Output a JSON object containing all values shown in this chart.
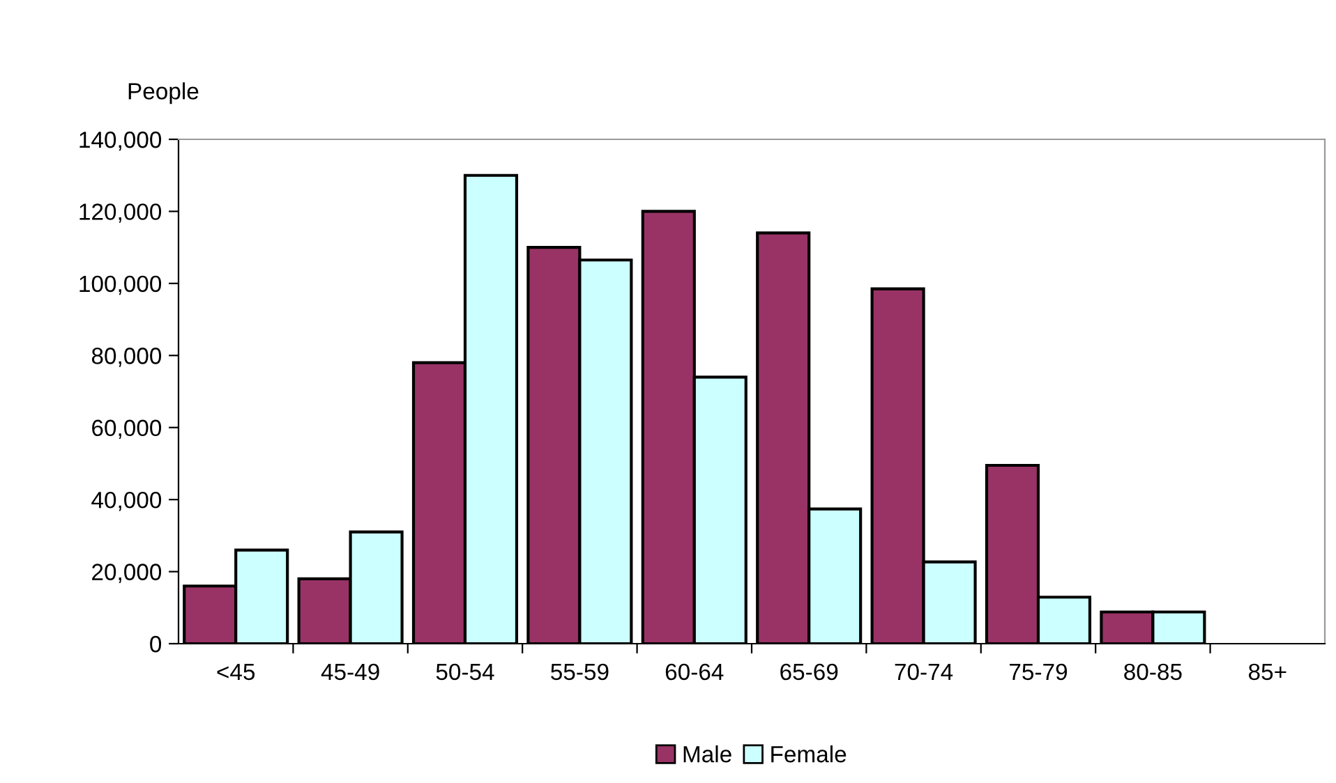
{
  "chart_data": {
    "type": "bar",
    "ylabel": "People",
    "categories": [
      "<45",
      "45-49",
      "50-54",
      "55-59",
      "60-64",
      "65-69",
      "70-74",
      "75-79",
      "80-85",
      "85+"
    ],
    "series": [
      {
        "name": "Male",
        "color": "#993366",
        "values": [
          16000,
          18000,
          78000,
          110000,
          120000,
          114000,
          98500,
          49500,
          8800,
          null
        ]
      },
      {
        "name": "Female",
        "color": "#ccffff",
        "values": [
          26000,
          31000,
          130000,
          106500,
          74000,
          37400,
          22700,
          12900,
          8800,
          null
        ]
      }
    ],
    "ylim": [
      0,
      140000
    ],
    "yticks": [
      {
        "value": 0,
        "label": "0"
      },
      {
        "value": 20000,
        "label": "20,000"
      },
      {
        "value": 40000,
        "label": "40,000"
      },
      {
        "value": 60000,
        "label": "60,000"
      },
      {
        "value": 80000,
        "label": "80,000"
      },
      {
        "value": 100000,
        "label": "100,000"
      },
      {
        "value": 120000,
        "label": "120,000"
      },
      {
        "value": 140000,
        "label": "140,000"
      }
    ],
    "grid": false,
    "legend": "bottom"
  }
}
